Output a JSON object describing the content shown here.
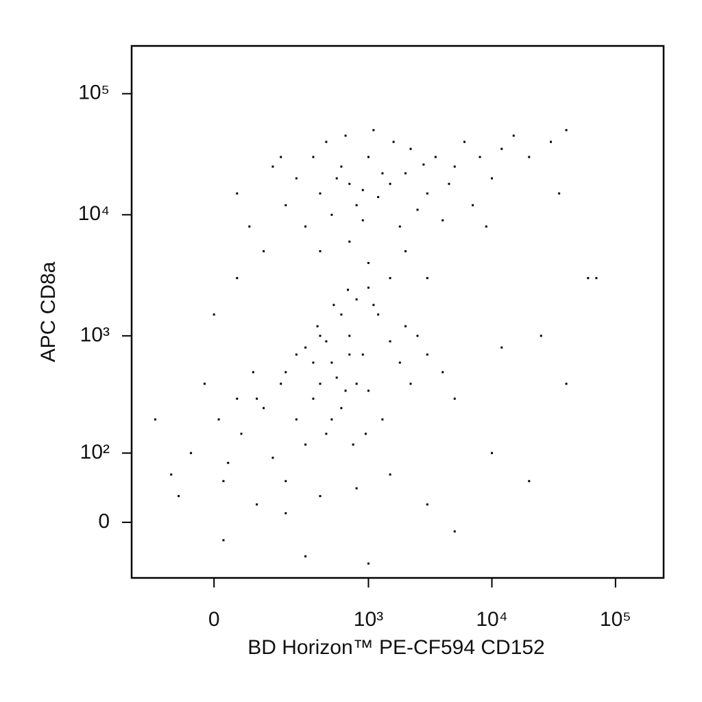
{
  "chart_data": {
    "type": "scatter",
    "x_label": "BD Horizon™ PE-CF594 CD152",
    "y_label": "APC CD8a",
    "xscale": "biexponential",
    "yscale": "biexponential",
    "color": "#000000",
    "xlim": [
      -250,
      245000
    ],
    "ylim": [
      -73,
      248000
    ],
    "xticks": [
      0,
      {
        "value": 1000,
        "label": "10³"
      },
      {
        "value": 10000,
        "label": "10⁴"
      },
      {
        "value": 100000,
        "label": "10⁵"
      }
    ],
    "yticks": [
      0,
      {
        "value": 100,
        "label": "10²"
      },
      {
        "value": 1000,
        "label": "10³"
      },
      {
        "value": 10000,
        "label": "10⁴"
      },
      {
        "value": 100000,
        "label": "10⁵"
      }
    ],
    "x": [
      250,
      400,
      600,
      800,
      1000,
      1500,
      2000,
      3000,
      5000,
      8000,
      12000,
      300,
      500,
      700,
      900,
      1200,
      1800,
      2500,
      4000,
      150,
      200,
      350,
      450,
      650,
      1100,
      1600,
      2200,
      3500,
      6000,
      10000,
      15000,
      20000,
      50,
      80,
      120,
      180,
      700,
      1300,
      900,
      550,
      2800,
      4500,
      7000,
      9000,
      400,
      1000,
      2000,
      3000,
      30000,
      40000,
      60000,
      35000,
      100,
      200,
      300,
      400,
      500,
      700,
      900,
      1200,
      1500,
      2000,
      250,
      350,
      450,
      600,
      800,
      1000,
      60,
      30,
      10,
      -50,
      -100,
      150,
      200,
      300,
      500,
      400,
      600,
      800,
      1000,
      1500,
      2500,
      3000,
      4000,
      5000,
      700,
      550,
      650,
      350,
      250,
      180,
      120,
      90,
      50,
      20,
      100,
      200,
      400,
      800,
      1500,
      3000,
      -20,
      -150,
      0,
      50,
      -80,
      20,
      300,
      1000,
      5000,
      10000,
      20000,
      12000,
      25000,
      40000,
      70000,
      1800,
      2200,
      1300,
      950,
      750,
      450,
      380,
      520,
      680,
      1100
    ],
    "values": [
      20000,
      15000,
      25000,
      12000,
      30000,
      18000,
      22000,
      15000,
      25000,
      30000,
      35000,
      8000,
      10000,
      6000,
      9000,
      14000,
      8000,
      11000,
      9000,
      25000,
      12000,
      30000,
      40000,
      45000,
      50000,
      40000,
      35000,
      30000,
      40000,
      20000,
      45000,
      30000,
      15000,
      8000,
      5000,
      30000,
      18000,
      22000,
      16000,
      20000,
      26000,
      18000,
      12000,
      8000,
      5000,
      4000,
      5000,
      3000,
      40000,
      50000,
      3000,
      15000,
      300,
      500,
      800,
      400,
      600,
      1000,
      700,
      1500,
      900,
      1200,
      200,
      300,
      150,
      250,
      400,
      350,
      150,
      80,
      200,
      100,
      60,
      90,
      50,
      120,
      200,
      1000,
      1500,
      2000,
      2500,
      3000,
      1000,
      700,
      500,
      300,
      700,
      450,
      350,
      600,
      700,
      400,
      250,
      500,
      300,
      50,
      20,
      10,
      30,
      40,
      60,
      20,
      400,
      200,
      1500,
      3000,
      30,
      -20,
      -40,
      -50,
      -10,
      100,
      50,
      800,
      1000,
      400,
      3000,
      600,
      400,
      200,
      150,
      120,
      900,
      1200,
      1800,
      2400,
      1800
    ]
  }
}
